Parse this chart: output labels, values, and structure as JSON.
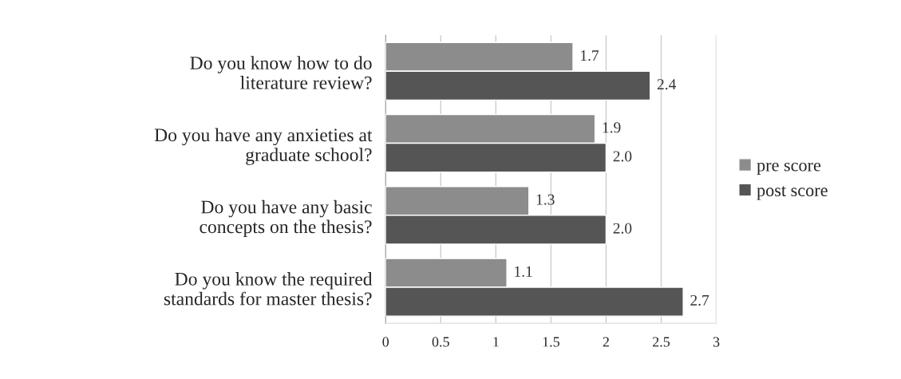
{
  "chart_data": {
    "type": "bar",
    "orientation": "horizontal",
    "categories": [
      "Do you know how to do\nliterature review?",
      "Do you have any anxieties at\ngraduate school?",
      "Do you have any basic\nconcepts on the thesis?",
      "Do you know the required\nstandards for master thesis?"
    ],
    "series": [
      {
        "name": "pre score",
        "color": "#8c8c8c",
        "values": [
          1.7,
          1.9,
          1.3,
          1.1
        ],
        "value_labels": [
          "1.7",
          "1.9",
          "1.3",
          "1.1"
        ]
      },
      {
        "name": "post score",
        "color": "#555555",
        "values": [
          2.4,
          2.0,
          2.0,
          2.7
        ],
        "value_labels": [
          "2.4",
          "2.0",
          "2.0",
          "2.7"
        ]
      }
    ],
    "xlim": [
      0,
      3
    ],
    "xticks": [
      0,
      0.5,
      1,
      1.5,
      2,
      2.5,
      3
    ],
    "grid": "x",
    "legend": "right"
  }
}
